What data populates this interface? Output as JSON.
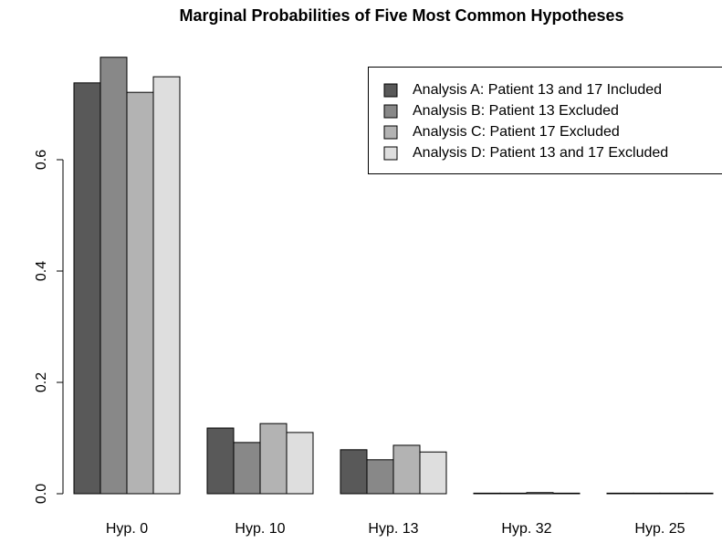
{
  "chart_data": {
    "type": "bar",
    "title": "Marginal Probabilities of Five Most Common Hypotheses",
    "categories": [
      "Hyp. 0",
      "Hyp. 10",
      "Hyp. 13",
      "Hyp. 32",
      "Hyp. 25"
    ],
    "series": [
      {
        "name": "Analysis A: Patient 13 and 17 Included",
        "color": "#595959",
        "values": [
          0.738,
          0.118,
          0.079,
          0.001,
          0.001
        ]
      },
      {
        "name": "Analysis B: Patient 13 Excluded",
        "color": "#888888",
        "values": [
          0.784,
          0.092,
          0.061,
          0.001,
          0.001
        ]
      },
      {
        "name": "Analysis C: Patient 17 Excluded",
        "color": "#b3b3b3",
        "values": [
          0.721,
          0.126,
          0.087,
          0.002,
          0.001
        ]
      },
      {
        "name": "Analysis D: Patient 13 and 17 Excluded",
        "color": "#dedede",
        "values": [
          0.749,
          0.11,
          0.075,
          0.001,
          0.001
        ]
      }
    ],
    "ylim": [
      0,
      0.8
    ],
    "yticks": [
      {
        "value": 0,
        "label": "0.0"
      },
      0.2,
      0.4,
      0.6
    ],
    "legend": "top-right"
  }
}
